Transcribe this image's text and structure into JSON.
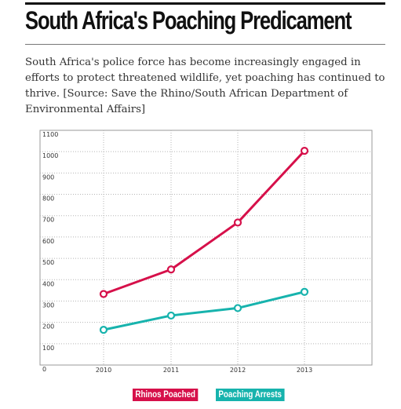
{
  "header": {
    "title": "South Africa's Poaching Predicament",
    "description": "South Africa's police force has become increasingly engaged in efforts to protect threatened wildlife, yet poaching has continued to thrive. [Source: Save the Rhino/South African Department of Environmental Affairs]"
  },
  "colors": {
    "rhinos": "#d6104a",
    "arrests": "#17b3ad"
  },
  "legend": {
    "rhinos_label": "Rhinos Poached",
    "arrests_label": "Poaching Arrests"
  },
  "chart_data": {
    "type": "line",
    "categories": [
      "2010",
      "2011",
      "2012",
      "2013"
    ],
    "y_ticks": [
      0,
      100,
      200,
      300,
      400,
      500,
      600,
      700,
      800,
      900,
      1000,
      1100
    ],
    "ylim": [
      0,
      1100
    ],
    "grid": true,
    "legend_position": "bottom-center",
    "series": [
      {
        "name": "Rhinos Poached",
        "values": [
          333,
          448,
          668,
          1004
        ]
      },
      {
        "name": "Poaching Arrests",
        "values": [
          165,
          232,
          267,
          343
        ]
      }
    ]
  }
}
